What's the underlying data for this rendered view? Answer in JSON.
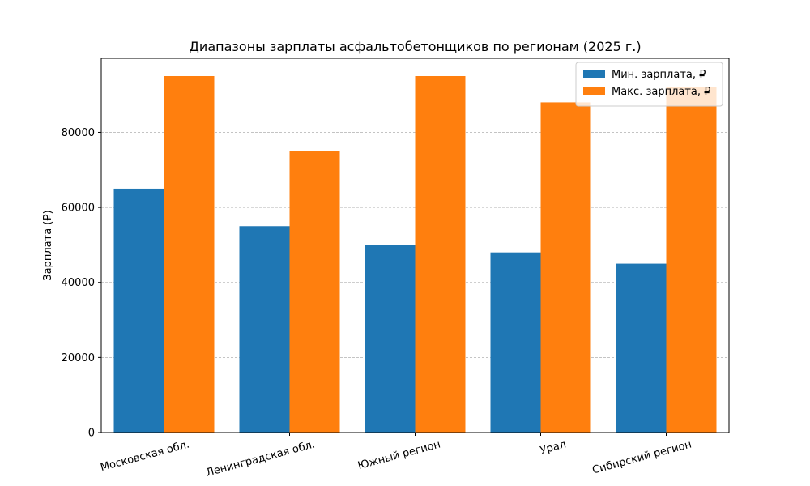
{
  "chart_data": {
    "type": "bar",
    "title": "Диапазоны зарплаты асфальтобетонщиков по регионам (2025 г.)",
    "xlabel": "",
    "ylabel": "Зарплата (₽)",
    "categories": [
      "Московская обл.",
      "Ленинградская обл.",
      "Южный регион",
      "Урал",
      "Сибирский регион"
    ],
    "series": [
      {
        "name": "Мин. зарплата, ₽",
        "values": [
          65000,
          55000,
          50000,
          48000,
          45000
        ],
        "color": "#1f77b4"
      },
      {
        "name": "Макс. зарплата, ₽",
        "values": [
          95000,
          75000,
          95000,
          88000,
          92000
        ],
        "color": "#ff7f0e"
      }
    ],
    "ylim": [
      0,
      99750
    ],
    "yticks": [
      0,
      20000,
      40000,
      60000,
      80000
    ],
    "grid": true,
    "legend_position": "top-right"
  }
}
